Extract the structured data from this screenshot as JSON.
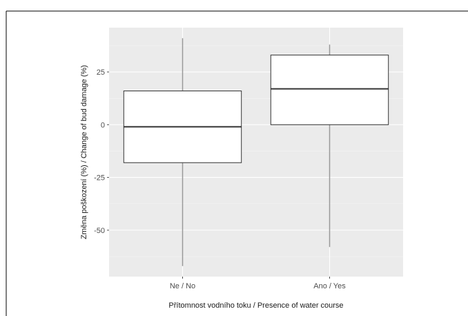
{
  "chart_data": {
    "type": "boxplot",
    "title": "",
    "xlabel": "Přítomnost vodního toku / Presence of water course",
    "ylabel": "Změna poškození (%) / Change of bud damage (%)",
    "categories": [
      "Ne / No",
      "Ano / Yes"
    ],
    "boxes": [
      {
        "category": "Ne / No",
        "whisker_low": -67,
        "q1": -18,
        "median": -1,
        "q3": 16,
        "whisker_high": 41
      },
      {
        "category": "Ano / Yes",
        "whisker_low": -58,
        "q1": 0,
        "median": 17,
        "q3": 33,
        "whisker_high": 38
      }
    ],
    "y_ticks": [
      -50,
      -25,
      0,
      25
    ],
    "y_tick_labels": [
      "-50",
      "-25",
      "0",
      "25"
    ],
    "ylim": [
      -72,
      46
    ],
    "grid": true,
    "colors": {
      "panel": "#ebebeb",
      "grid_major": "#ffffff",
      "grid_minor": "#f5f5f5",
      "box_fill": "#ffffff",
      "box_stroke": "#333333",
      "median": "#333333",
      "whisker": "#999999",
      "tick": "#4d4d4d"
    }
  }
}
